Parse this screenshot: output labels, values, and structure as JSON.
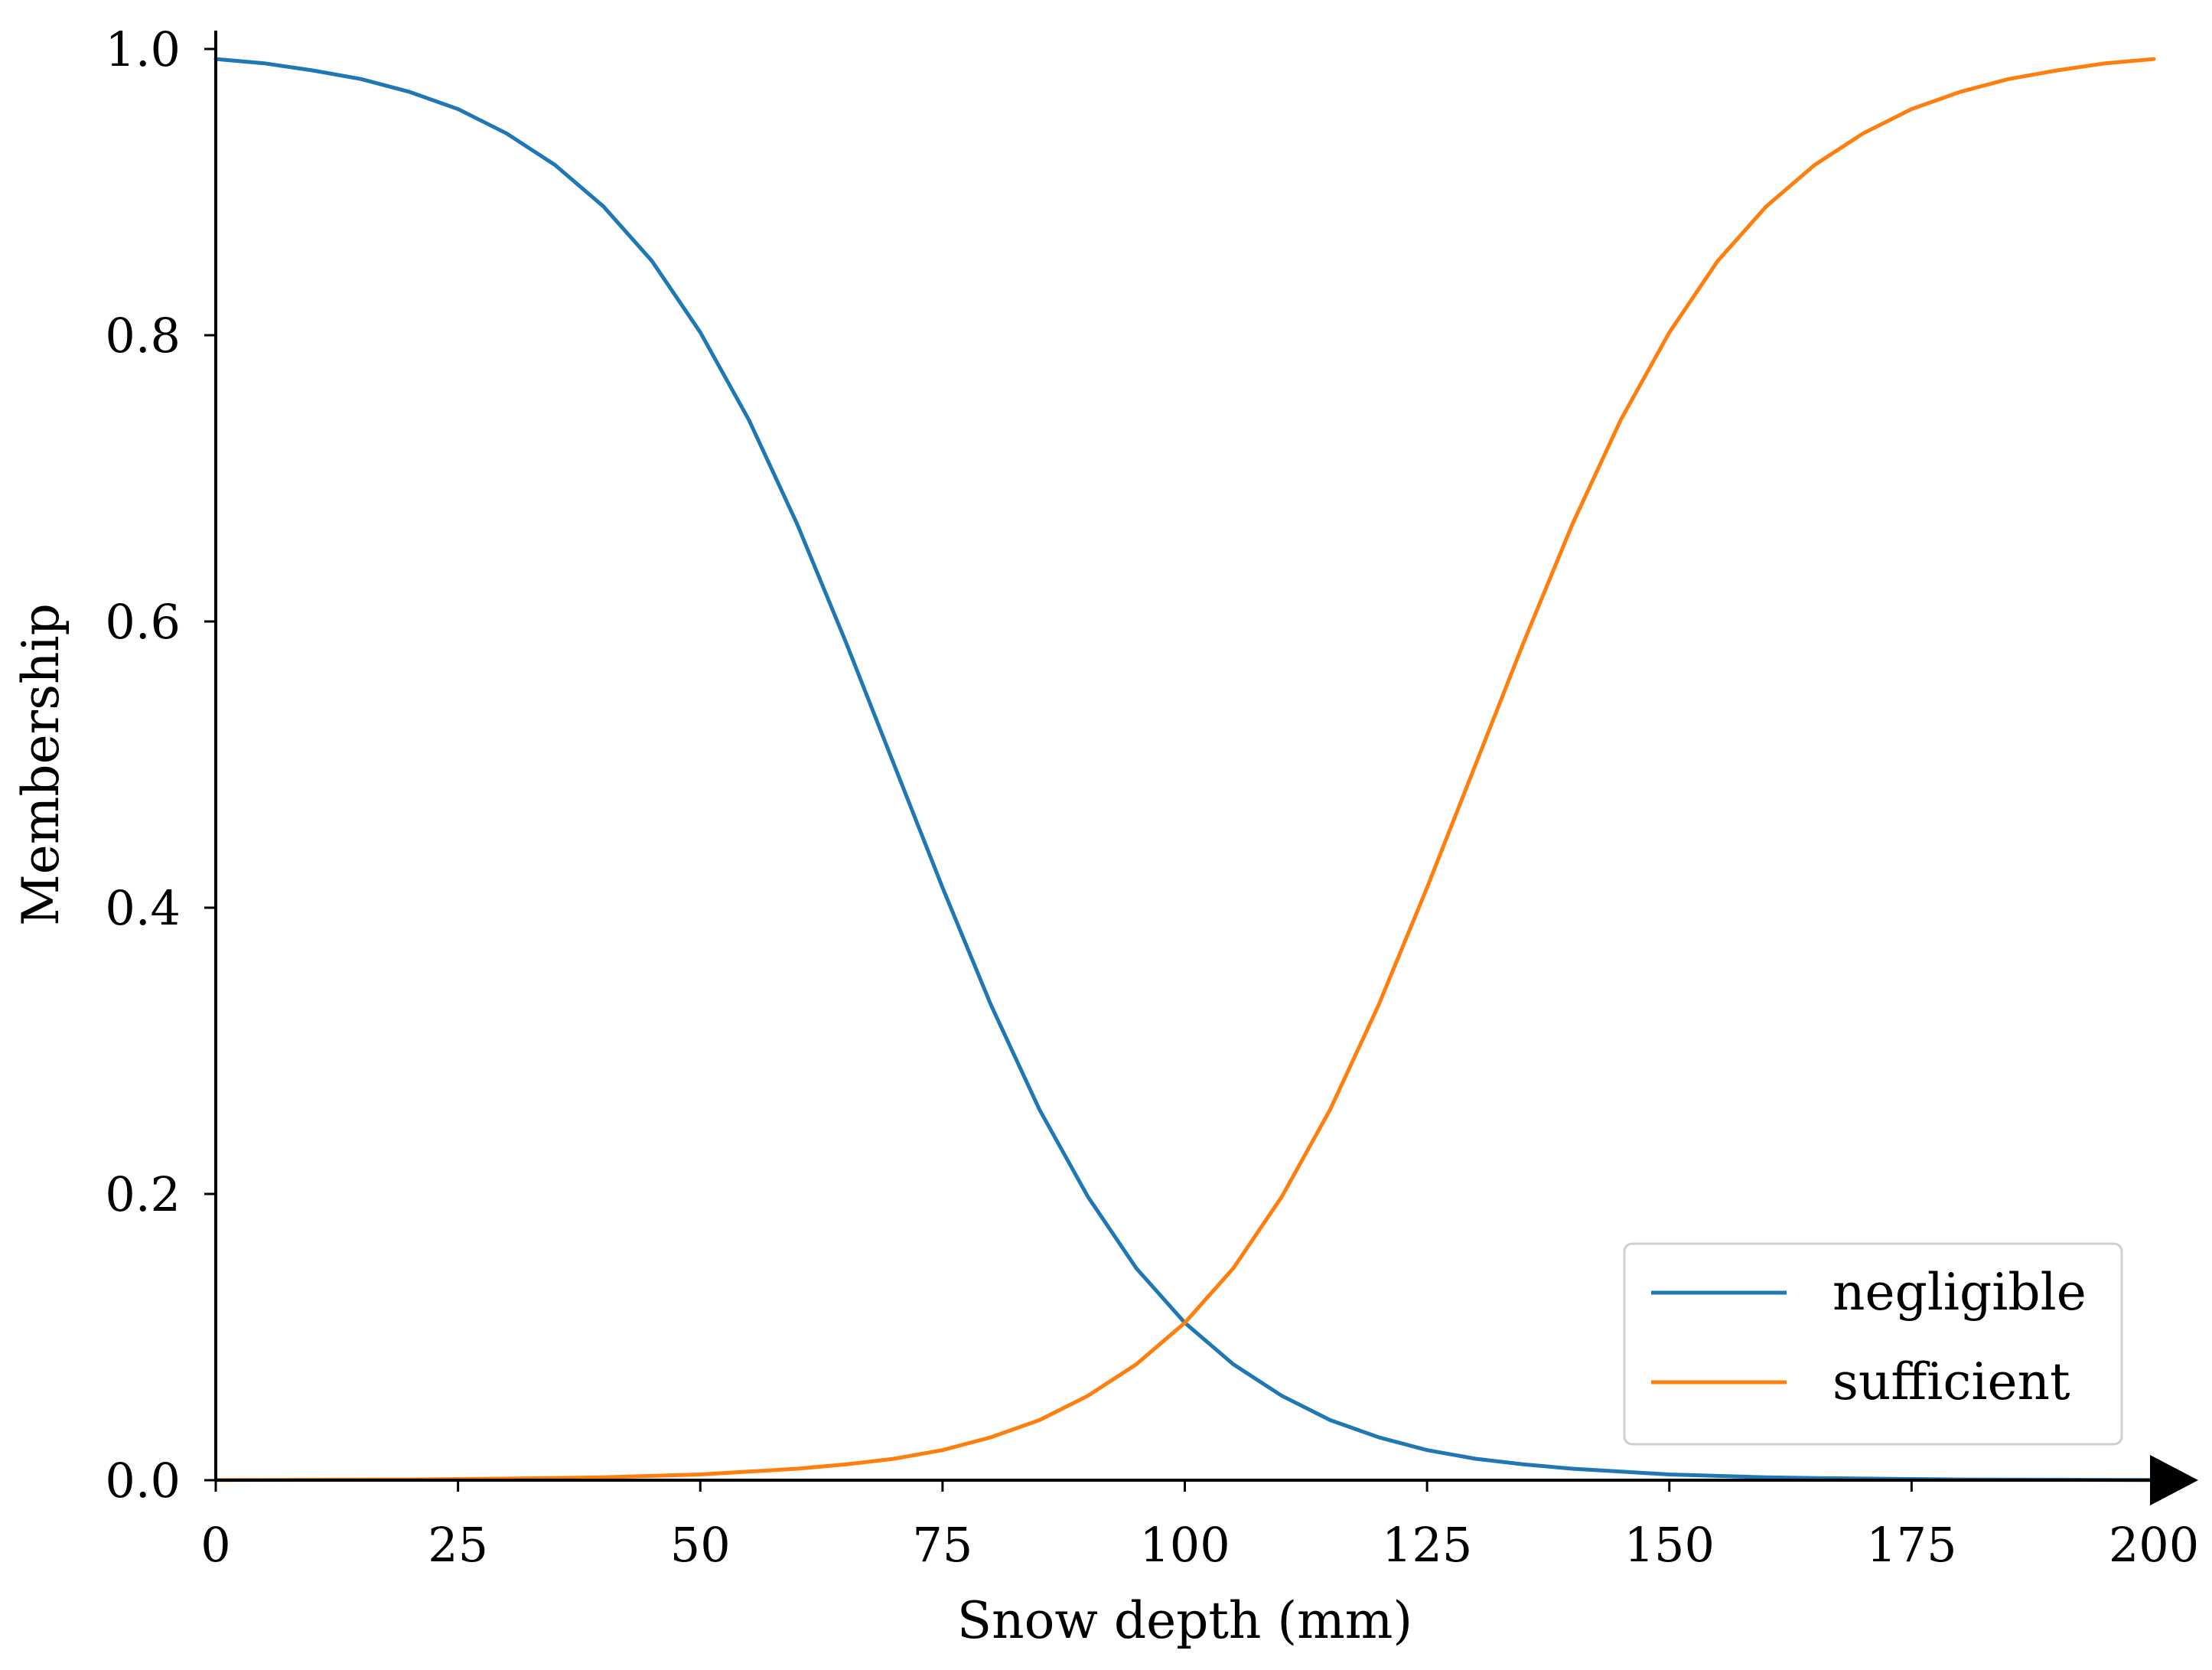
{
  "chart_data": {
    "type": "line",
    "title": "",
    "xlabel": "Snow depth (mm)",
    "ylabel": "Membership",
    "xlim": [
      0,
      200
    ],
    "ylim": [
      0,
      1.0
    ],
    "xticks": [
      "0",
      "25",
      "50",
      "75",
      "100",
      "125",
      "150",
      "175",
      "200"
    ],
    "yticks": [
      "0.0",
      "0.2",
      "0.4",
      "0.6",
      "0.8",
      "1.0"
    ],
    "grid": false,
    "legend_position": "bottom-right",
    "x_axis_arrow": true,
    "x": [
      0,
      5,
      10,
      15,
      20,
      25,
      30,
      35,
      40,
      45,
      50,
      55,
      60,
      65,
      70,
      75,
      80,
      85,
      90,
      95,
      100,
      105,
      110,
      115,
      120,
      125,
      130,
      135,
      140,
      145,
      150,
      155,
      160,
      165,
      170,
      175,
      180,
      185,
      190,
      195,
      200
    ],
    "series": [
      {
        "name": "negligible",
        "color": "#1f77b4",
        "values": [
          0.993,
          0.99,
          0.985,
          0.979,
          0.97,
          0.958,
          0.941,
          0.919,
          0.89,
          0.852,
          0.802,
          0.741,
          0.668,
          0.586,
          0.5,
          0.414,
          0.332,
          0.259,
          0.198,
          0.148,
          0.11,
          0.081,
          0.059,
          0.042,
          0.03,
          0.021,
          0.015,
          0.011,
          0.008,
          0.006,
          0.004,
          0.003,
          0.002,
          0.0015,
          0.0011,
          0.0008,
          0.0005,
          0.0004,
          0.0003,
          0.0002,
          0.0001
        ]
      },
      {
        "name": "sufficient",
        "color": "#ff7f0e",
        "values": [
          0.0001,
          0.0002,
          0.0003,
          0.0004,
          0.0005,
          0.0008,
          0.0011,
          0.0015,
          0.002,
          0.003,
          0.004,
          0.006,
          0.008,
          0.011,
          0.015,
          0.021,
          0.03,
          0.042,
          0.059,
          0.081,
          0.11,
          0.148,
          0.198,
          0.259,
          0.332,
          0.414,
          0.5,
          0.586,
          0.668,
          0.741,
          0.802,
          0.852,
          0.89,
          0.919,
          0.941,
          0.958,
          0.97,
          0.979,
          0.985,
          0.99,
          0.993
        ]
      }
    ]
  }
}
